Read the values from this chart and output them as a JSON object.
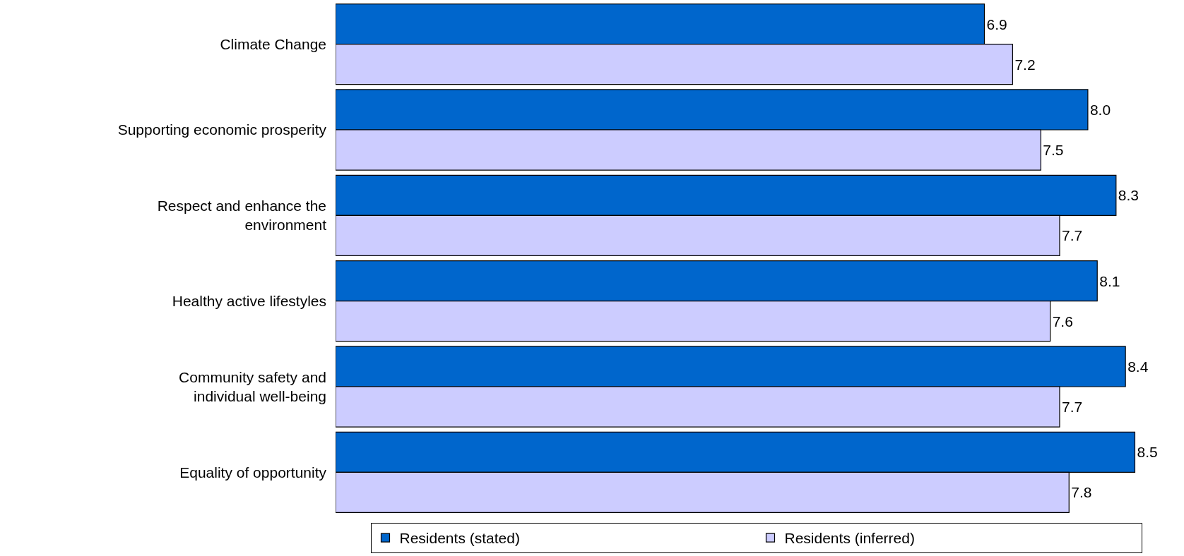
{
  "chart_data": {
    "type": "bar",
    "orientation": "horizontal",
    "categories": [
      "Climate Change",
      "Supporting economic prosperity",
      "Respect and enhance the environment",
      "Healthy active lifestyles",
      "Community safety and individual well-being",
      "Equality of opportunity"
    ],
    "series": [
      {
        "name": "Residents (stated)",
        "color": "#0066cc",
        "values": [
          6.9,
          8.0,
          8.3,
          8.1,
          8.4,
          8.5
        ],
        "value_labels": [
          "6.9",
          "8.0",
          "8.3",
          "8.1",
          "8.4",
          "8.5"
        ]
      },
      {
        "name": "Residents (inferred)",
        "color": "#ccccff",
        "values": [
          7.2,
          7.5,
          7.7,
          7.6,
          7.7,
          7.8
        ],
        "value_labels": [
          "7.2",
          "7.5",
          "7.7",
          "7.6",
          "7.7",
          "7.8"
        ]
      }
    ],
    "legend": "bottom",
    "tick_labels": "y"
  }
}
